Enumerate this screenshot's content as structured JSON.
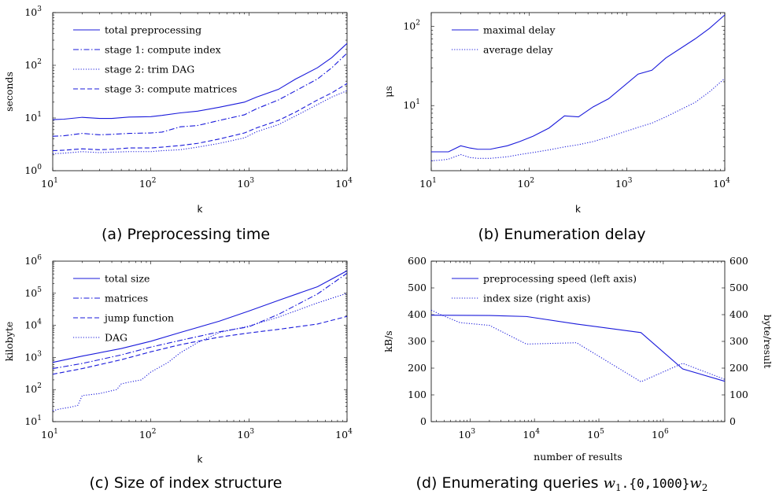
{
  "colors": {
    "series": "#1a1adb",
    "axis": "#000000"
  },
  "chart_data": [
    {
      "id": "a",
      "type": "line",
      "caption": "(a) Preprocessing time",
      "xlabel": "k",
      "ylabel": "seconds",
      "xscale": "log",
      "yscale": "log",
      "xlim": [
        10,
        10000
      ],
      "ylim": [
        1,
        1000
      ],
      "xticks": [
        "10",
        "10",
        "10",
        "10"
      ],
      "xtick_exp": [
        "1",
        "2",
        "3",
        "4"
      ],
      "yticks": [
        "10",
        "10",
        "10",
        "10"
      ],
      "ytick_exp": [
        "0",
        "1",
        "2",
        "3"
      ],
      "legend_position": "top-left",
      "series": [
        {
          "name": "total preprocessing",
          "dash": "solid",
          "x": [
            10,
            13,
            20,
            30,
            40,
            60,
            100,
            130,
            200,
            300,
            500,
            900,
            1200,
            2000,
            3000,
            5000,
            7000,
            10000
          ],
          "y": [
            9.3,
            9.5,
            10.3,
            9.8,
            9.8,
            10.4,
            10.6,
            11.2,
            12.5,
            13.5,
            16,
            20,
            25,
            35,
            55,
            90,
            140,
            260
          ]
        },
        {
          "name": "stage 1: compute index",
          "dash": "dashdot",
          "x": [
            10,
            13,
            20,
            30,
            40,
            60,
            100,
            130,
            200,
            300,
            500,
            900,
            1200,
            2000,
            3000,
            5000,
            7000,
            10000
          ],
          "y": [
            4.5,
            4.6,
            5.1,
            4.8,
            4.9,
            5.1,
            5.2,
            5.4,
            6.8,
            7.2,
            9,
            11.5,
            15,
            22,
            33,
            55,
            90,
            170
          ]
        },
        {
          "name": "stage 2: trim DAG",
          "dash": "dotted",
          "x": [
            10,
            13,
            20,
            30,
            40,
            60,
            100,
            130,
            200,
            300,
            500,
            900,
            1200,
            2000,
            3000,
            5000,
            7000,
            10000
          ],
          "y": [
            2.1,
            2.15,
            2.3,
            2.2,
            2.25,
            2.3,
            2.3,
            2.4,
            2.5,
            2.8,
            3.3,
            4.2,
            5.5,
            7.5,
            11,
            18,
            25,
            33
          ]
        },
        {
          "name": "stage 3: compute matrices",
          "dash": "dashed",
          "x": [
            10,
            13,
            20,
            30,
            40,
            60,
            100,
            130,
            200,
            300,
            500,
            900,
            1200,
            2000,
            3000,
            5000,
            7000,
            10000
          ],
          "y": [
            2.4,
            2.45,
            2.6,
            2.5,
            2.55,
            2.7,
            2.7,
            2.8,
            3.0,
            3.3,
            4.0,
            5.2,
            6.5,
            9,
            13,
            22,
            30,
            45
          ]
        }
      ]
    },
    {
      "id": "b",
      "type": "line",
      "caption": "(b) Enumeration delay",
      "xlabel": "k",
      "ylabel": "μs",
      "xscale": "log",
      "yscale": "log",
      "xlim": [
        10,
        10000
      ],
      "ylim": [
        1.5,
        150
      ],
      "xticks": [
        "10",
        "10",
        "10",
        "10"
      ],
      "xtick_exp": [
        "1",
        "2",
        "3",
        "4"
      ],
      "yticks": [
        "10",
        "10"
      ],
      "ytick_exp": [
        "1",
        "2"
      ],
      "ytick_values": [
        10,
        100
      ],
      "legend_position": "top-left",
      "series": [
        {
          "name": "maximal delay",
          "dash": "solid",
          "x": [
            10,
            13,
            15,
            20,
            25,
            30,
            40,
            60,
            80,
            110,
            160,
            230,
            320,
            450,
            650,
            1300,
            1800,
            2500,
            5000,
            7000,
            10000
          ],
          "y": [
            2.6,
            2.6,
            2.6,
            3.1,
            2.9,
            2.8,
            2.8,
            3.1,
            3.5,
            4.1,
            5.2,
            7.4,
            7.2,
            9.6,
            12.2,
            25,
            28,
            40,
            70,
            95,
            140
          ]
        },
        {
          "name": "average delay",
          "dash": "dotted",
          "x": [
            10,
            13,
            15,
            20,
            25,
            30,
            40,
            60,
            80,
            110,
            160,
            230,
            320,
            450,
            650,
            1300,
            1800,
            2500,
            5000,
            7000,
            10000
          ],
          "y": [
            2.0,
            2.05,
            2.1,
            2.4,
            2.2,
            2.15,
            2.15,
            2.25,
            2.4,
            2.55,
            2.75,
            3.0,
            3.2,
            3.5,
            4.0,
            5.3,
            6.0,
            7.2,
            11,
            15,
            22
          ]
        }
      ]
    },
    {
      "id": "c",
      "type": "line",
      "caption": "(c) Size of index structure",
      "xlabel": "k",
      "ylabel": "kilobyte",
      "xscale": "log",
      "yscale": "log",
      "xlim": [
        10,
        10000
      ],
      "ylim": [
        10,
        1000000
      ],
      "xticks": [
        "10",
        "10",
        "10",
        "10"
      ],
      "xtick_exp": [
        "1",
        "2",
        "3",
        "4"
      ],
      "yticks": [
        "10",
        "10",
        "10",
        "10",
        "10",
        "10"
      ],
      "ytick_exp": [
        "1",
        "2",
        "3",
        "4",
        "5",
        "6"
      ],
      "legend_position": "top-left",
      "series": [
        {
          "name": "total size",
          "dash": "solid",
          "x": [
            10,
            20,
            50,
            100,
            200,
            500,
            1000,
            2000,
            5000,
            10000
          ],
          "y": [
            700,
            1100,
            1900,
            3200,
            6000,
            13500,
            28000,
            60000,
            160000,
            500000
          ]
        },
        {
          "name": "matrices",
          "dash": "dashdot",
          "x": [
            10,
            20,
            50,
            100,
            200,
            500,
            1000,
            2000,
            5000,
            10000
          ],
          "y": [
            450,
            650,
            1200,
            2100,
            3400,
            6300,
            9000,
            22000,
            95000,
            420000
          ]
        },
        {
          "name": "jump function",
          "dash": "dashed",
          "x": [
            10,
            20,
            50,
            100,
            200,
            500,
            1000,
            2000,
            5000,
            10000
          ],
          "y": [
            300,
            450,
            850,
            1500,
            2500,
            4300,
            5800,
            7500,
            11000,
            19000
          ]
        },
        {
          "name": "DAG",
          "dash": "dotted",
          "x": [
            10,
            12,
            15,
            18,
            20,
            30,
            45,
            50,
            60,
            80,
            100,
            150,
            200,
            300,
            500,
            1000,
            2000,
            5000,
            10000
          ],
          "y": [
            22,
            25,
            28,
            32,
            65,
            75,
            100,
            150,
            170,
            200,
            350,
            700,
            1400,
            2900,
            6000,
            9500,
            18000,
            50000,
            100000
          ]
        }
      ]
    },
    {
      "id": "d",
      "type": "line",
      "caption": "(d) Enumerating queries w1.{0,1000}w2",
      "xlabel": "number of results",
      "ylabel": "kB/s",
      "ylabel_right": "byte/result",
      "xscale": "log",
      "yscale": "linear",
      "xlim": [
        250,
        9000000
      ],
      "ylim": [
        0,
        600
      ],
      "xticks": [
        "10",
        "10",
        "10",
        "10",
        "10"
      ],
      "xtick_exp": [
        "3",
        "4",
        "5",
        "6",
        "7"
      ],
      "yticks": [
        "0",
        "100",
        "200",
        "300",
        "400",
        "500",
        "600"
      ],
      "legend_position": "top-left",
      "series": [
        {
          "name": "preprocessing speed (left axis)",
          "dash": "solid",
          "axis": "left",
          "x": [
            250,
            2000,
            7500,
            45000,
            450000,
            2000000,
            9000000
          ],
          "y": [
            398,
            397,
            393,
            365,
            333,
            197,
            151
          ]
        },
        {
          "name": "index size (right axis)",
          "dash": "dotted",
          "axis": "right",
          "x": [
            250,
            350,
            700,
            2000,
            7500,
            45000,
            450000,
            2000000,
            9000000
          ],
          "y": [
            417,
            400,
            370,
            360,
            290,
            295,
            149,
            218,
            158
          ]
        }
      ]
    }
  ],
  "caption_d": {
    "prefix": "(d) Enumerating queries ",
    "w": "w",
    "sub1": "1",
    "dot": ".",
    "mono": "{0,1000}",
    "sub2": "2"
  }
}
